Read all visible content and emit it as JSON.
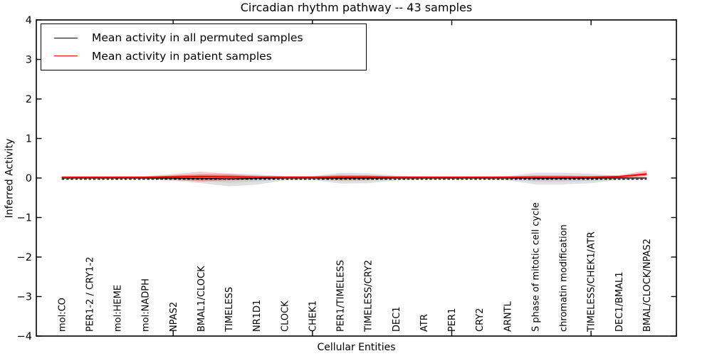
{
  "chart_data": {
    "type": "line",
    "title": "Circadian rhythm pathway -- 43 samples",
    "xlabel": "Cellular Entities",
    "ylabel": "Inferred Activity",
    "ylim": [
      -4,
      4
    ],
    "grid": false,
    "categories": [
      "mol:CO",
      "PER1-2 / CRY1-2",
      "mol:HEME",
      "mol:NADPH",
      "NPAS2",
      "BMAL1/CLOCK",
      "TIMELESS",
      "NR1D1",
      "CLOCK",
      "CHEK1",
      "PER1/TIMELESS",
      "TIMELESS/CRY2",
      "DEC1",
      "ATR",
      "PER1",
      "CRY2",
      "ARNTL",
      "S phase of mitotic cell cycle",
      "chromatin modification",
      "TIMELESS/CHEK1/ATR",
      "DEC1/BMAL1",
      "BMAL/CLOCK/NPAS2"
    ],
    "yticks": [
      {
        "v": 4,
        "label": "4"
      },
      {
        "v": 3,
        "label": "3"
      },
      {
        "v": 2,
        "label": "2"
      },
      {
        "v": 1,
        "label": "1"
      },
      {
        "v": 0,
        "label": "0"
      },
      {
        "v": -1,
        "label": "−1"
      },
      {
        "v": -2,
        "label": "−2"
      },
      {
        "v": -3,
        "label": "−3"
      },
      {
        "v": -4,
        "label": "−4"
      }
    ],
    "xtick_mark_indices": [
      4,
      9,
      14,
      19
    ],
    "series": [
      {
        "name": "Mean activity in all permuted samples",
        "color": "#000000",
        "style": "solid",
        "values": [
          0,
          0,
          0,
          0,
          -0.005,
          -0.01,
          -0.02,
          -0.01,
          0,
          0,
          -0.005,
          -0.005,
          0,
          0,
          0,
          0,
          0,
          -0.01,
          -0.01,
          -0.005,
          0,
          0
        ]
      },
      {
        "name": "Mean activity in patient samples",
        "color": "#ff0000",
        "style": "solid",
        "values": [
          0.02,
          0.02,
          0.02,
          0.02,
          0.03,
          0.035,
          0.03,
          0.02,
          0.02,
          0.02,
          0.025,
          0.025,
          0.02,
          0.02,
          0.02,
          0.02,
          0.02,
          0.02,
          0.02,
          0.02,
          0.035,
          0.1
        ]
      }
    ],
    "baseline_dashed": {
      "value": -0.03,
      "color": "#000000",
      "style": "dashed"
    },
    "bands": [
      {
        "name": "permuted-range-outer",
        "color": "#999999",
        "opacity": 0.3,
        "upper": [
          0.02,
          0.02,
          0.02,
          0.03,
          0.06,
          0.09,
          0.11,
          0.09,
          0.05,
          0.05,
          0.13,
          0.12,
          0.06,
          0.04,
          0.03,
          0.03,
          0.05,
          0.13,
          0.13,
          0.11,
          0.05,
          0.03
        ],
        "lower": [
          -0.02,
          -0.02,
          -0.02,
          -0.03,
          -0.07,
          -0.13,
          -0.21,
          -0.17,
          -0.06,
          -0.05,
          -0.14,
          -0.13,
          -0.06,
          -0.04,
          -0.03,
          -0.03,
          -0.06,
          -0.16,
          -0.16,
          -0.13,
          -0.05,
          -0.03
        ]
      },
      {
        "name": "permuted-range-inner",
        "color": "#999999",
        "opacity": 0.25,
        "upper": [
          0.01,
          0.01,
          0.01,
          0.02,
          0.03,
          0.05,
          0.06,
          0.05,
          0.03,
          0.03,
          0.07,
          0.07,
          0.03,
          0.02,
          0.02,
          0.02,
          0.03,
          0.07,
          0.07,
          0.06,
          0.03,
          0.02
        ],
        "lower": [
          -0.01,
          -0.01,
          -0.01,
          -0.02,
          -0.04,
          -0.07,
          -0.12,
          -0.09,
          -0.03,
          -0.03,
          -0.08,
          -0.07,
          -0.03,
          -0.02,
          -0.02,
          -0.02,
          -0.03,
          -0.09,
          -0.09,
          -0.07,
          -0.03,
          -0.02
        ]
      },
      {
        "name": "patient-range-outer",
        "color": "#ff0000",
        "opacity": 0.22,
        "upper": [
          0.03,
          0.03,
          0.03,
          0.04,
          0.1,
          0.16,
          0.11,
          0.06,
          0.04,
          0.04,
          0.08,
          0.07,
          0.04,
          0.03,
          0.03,
          0.03,
          0.04,
          0.06,
          0.06,
          0.05,
          0.07,
          0.19
        ],
        "lower": [
          -0.02,
          -0.02,
          -0.02,
          -0.02,
          -0.05,
          -0.09,
          -0.06,
          -0.03,
          -0.02,
          -0.02,
          -0.05,
          -0.04,
          -0.02,
          -0.02,
          -0.02,
          -0.02,
          -0.02,
          -0.03,
          -0.03,
          -0.02,
          0.0,
          0.04
        ]
      },
      {
        "name": "patient-range-inner",
        "color": "#ff0000",
        "opacity": 0.3,
        "upper": [
          0.02,
          0.02,
          0.02,
          0.03,
          0.06,
          0.09,
          0.07,
          0.04,
          0.03,
          0.03,
          0.05,
          0.05,
          0.03,
          0.02,
          0.02,
          0.02,
          0.03,
          0.04,
          0.04,
          0.03,
          0.05,
          0.14
        ],
        "lower": [
          -0.01,
          -0.01,
          -0.01,
          -0.01,
          -0.03,
          -0.05,
          -0.03,
          -0.02,
          -0.01,
          -0.01,
          -0.03,
          -0.02,
          -0.01,
          -0.01,
          -0.01,
          -0.01,
          -0.01,
          -0.02,
          -0.02,
          -0.01,
          0.01,
          0.06
        ]
      }
    ],
    "legend": {
      "position": "upper left",
      "items": [
        {
          "label": "Mean activity in all permuted samples",
          "color": "#000000"
        },
        {
          "label": "Mean activity in patient samples",
          "color": "#ff0000"
        }
      ]
    }
  }
}
